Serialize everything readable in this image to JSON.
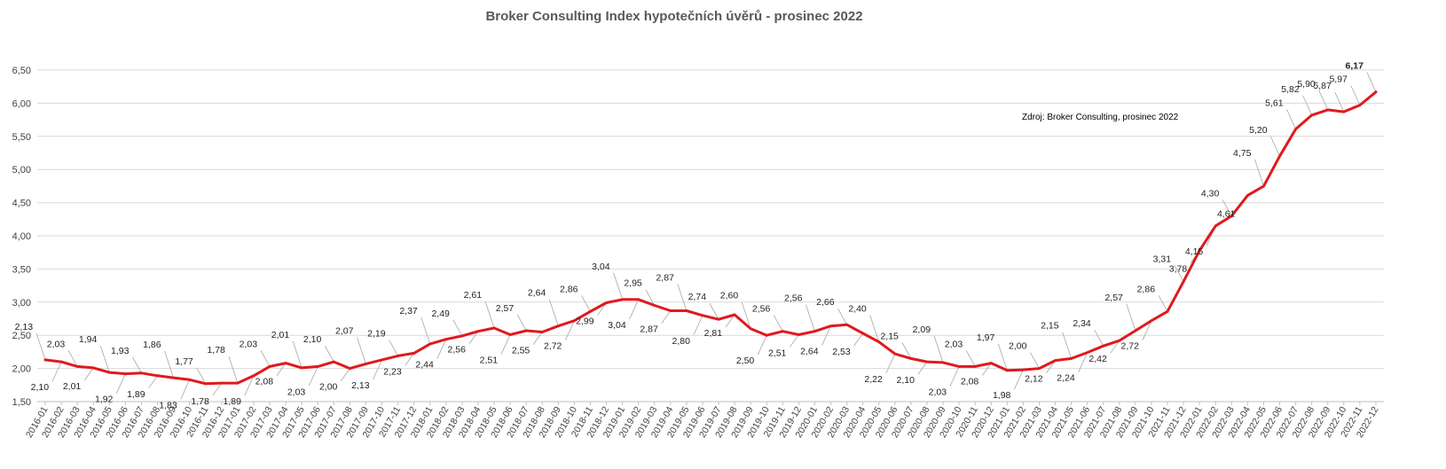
{
  "chart_data": {
    "type": "line",
    "title": "Broker Consulting Index hypotečních úvěrů - prosinec 2022",
    "annotation": "Zdroj: Broker Consulting, prosinec 2022",
    "xlabel": "",
    "ylabel": "",
    "ylim": [
      1.5,
      6.5
    ],
    "yticks": [
      "1,50",
      "2,00",
      "2,50",
      "3,00",
      "3,50",
      "4,00",
      "4,50",
      "5,00",
      "5,50",
      "6,00",
      "6,50"
    ],
    "grid": true,
    "legend": "none",
    "line_color": "#e0191d",
    "highlight_color": "#c00000",
    "categories": [
      "2016-01",
      "2016-02",
      "2016-03",
      "2016-04",
      "2016-05",
      "2016-06",
      "2016-07",
      "2016-08",
      "2016-09",
      "2016-10",
      "2016-11",
      "2016-12",
      "2017-01",
      "2017-02",
      "2017-03",
      "2017-04",
      "2017-05",
      "2017-06",
      "2017-07",
      "2017-08",
      "2017-09",
      "2017-10",
      "2017-11",
      "2017-12",
      "2018-01",
      "2018-02",
      "2018-03",
      "2018-04",
      "2018-05",
      "2018-06",
      "2018-07",
      "2018-08",
      "2018-09",
      "2018-10",
      "2018-11",
      "2018-12",
      "2019-01",
      "2019-02",
      "2019-03",
      "2019-04",
      "2019-05",
      "2019-06",
      "2019-07",
      "2019-08",
      "2019-09",
      "2019-10",
      "2019-11",
      "2019-12",
      "2020-01",
      "2020-02",
      "2020-03",
      "2020-04",
      "2020-05",
      "2020-06",
      "2020-07",
      "2020-08",
      "2020-09",
      "2020-10",
      "2020-11",
      "2020-12",
      "2021-01",
      "2021-02",
      "2021-03",
      "2021-04",
      "2021-05",
      "2021-06",
      "2021-07",
      "2021-08",
      "2021-09",
      "2021-10",
      "2021-11",
      "2021-12",
      "2022-01",
      "2022-02",
      "2022-03",
      "2022-04",
      "2022-05",
      "2022-06",
      "2022-07",
      "2022-08",
      "2022-09",
      "2022-10",
      "2022-11",
      "2022-12"
    ],
    "values": [
      2.13,
      2.1,
      2.03,
      2.01,
      1.94,
      1.92,
      1.93,
      1.89,
      1.86,
      1.83,
      1.77,
      1.78,
      1.78,
      1.89,
      2.03,
      2.08,
      2.01,
      2.03,
      2.1,
      2.0,
      2.07,
      2.13,
      2.19,
      2.23,
      2.37,
      2.44,
      2.49,
      2.56,
      2.61,
      2.51,
      2.57,
      2.55,
      2.64,
      2.72,
      2.86,
      2.99,
      3.04,
      3.04,
      2.95,
      2.87,
      2.87,
      2.8,
      2.74,
      2.81,
      2.6,
      2.5,
      2.56,
      2.51,
      2.56,
      2.64,
      2.66,
      2.53,
      2.4,
      2.22,
      2.15,
      2.1,
      2.09,
      2.03,
      2.03,
      2.08,
      1.97,
      1.98,
      2.0,
      2.12,
      2.15,
      2.24,
      2.34,
      2.42,
      2.57,
      2.72,
      2.86,
      3.31,
      3.78,
      4.15,
      4.3,
      4.61,
      4.75,
      5.2,
      5.61,
      5.82,
      5.9,
      5.87,
      5.97,
      6.17
    ],
    "data_labels": [
      "2,13",
      "2,10",
      "2,03",
      "2,01",
      "1,94",
      "1,92",
      "1,93",
      "1,89",
      "1,86",
      "1,83",
      "1,77",
      "1,78",
      "1,78",
      "1,89",
      "2,03",
      "2,08",
      "2,01",
      "2,03",
      "2,10",
      "2,00",
      "2,07",
      "2,13",
      "2,19",
      "2,23",
      "2,37",
      "2,44",
      "2,49",
      "2,56",
      "2,61",
      "2,51",
      "2,57",
      "2,55",
      "2,64",
      "2,72",
      "2,86",
      "2,99",
      "3,04",
      "3,04",
      "2,95",
      "2,87",
      "2,87",
      "2,80",
      "2,74",
      "2,81",
      "2,60",
      "2,50",
      "2,56",
      "2,51",
      "2,56",
      "2,64",
      "2,66",
      "2,53",
      "2,40",
      "2,22",
      "2,15",
      "2,10",
      "2,09",
      "2,03",
      "2,03",
      "2,08",
      "1,97",
      "1,98",
      "2,00",
      "2,12",
      "2,15",
      "2,24",
      "2,34",
      "2,42",
      "2,57",
      "2,72",
      "2,86",
      "3,31",
      "3,78",
      "4,15",
      "4,30",
      "4,61",
      "4,75",
      "5,20",
      "5,61",
      "5,82",
      "5,90",
      "5,87",
      "5,97",
      "6,17"
    ]
  }
}
